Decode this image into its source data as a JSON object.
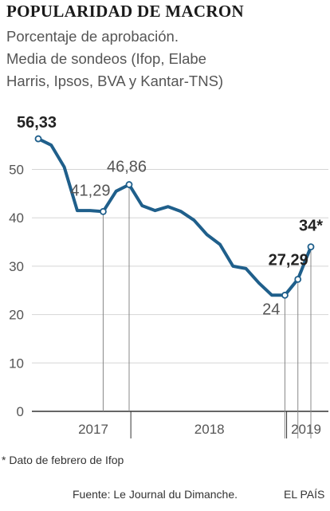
{
  "header": {
    "title": "POPULARIDAD DE MACRON",
    "subtitle_lines": [
      "Porcentaje de aprobación.",
      "Media de sondeos (Ifop, Elabe",
      "Harris, Ipsos, BVA y Kantar-TNS)"
    ]
  },
  "footer": {
    "note": "* Dato de febrero de Ifop",
    "source": "Fuente: Le Journal du Dimanche.",
    "brand": "EL PAÍS"
  },
  "colors": {
    "line": "#1f5f8b",
    "grid": "#d5d5d5",
    "axis": "#333333",
    "text": "#555555"
  },
  "chart_data": {
    "type": "line",
    "y_ticks": [
      0,
      10,
      20,
      30,
      40,
      50
    ],
    "ylim": [
      0,
      56.33
    ],
    "grid": true,
    "x_period_labels": [
      "2017",
      "2018",
      "2019"
    ],
    "x": [
      "2017-05",
      "2017-06",
      "2017-07",
      "2017-08",
      "2017-09",
      "2017-10",
      "2017-11",
      "2017-12",
      "2018-01",
      "2018-02",
      "2018-03",
      "2018-04",
      "2018-05",
      "2018-06",
      "2018-07",
      "2018-08",
      "2018-09",
      "2018-10",
      "2018-11",
      "2018-12",
      "2019-01",
      "2019-02"
    ],
    "series": [
      {
        "values": [
          56.33,
          55,
          50.5,
          41.5,
          41.5,
          41.29,
          45.5,
          46.86,
          42.5,
          41.5,
          42.3,
          41.3,
          39.5,
          36.5,
          34.5,
          30,
          29.5,
          26.5,
          24,
          24,
          27.29,
          34
        ]
      }
    ],
    "point_labels": [
      {
        "index": 0,
        "text": "56,33",
        "bold": true
      },
      {
        "index": 5,
        "text": "41,29",
        "bold": false
      },
      {
        "index": 7,
        "text": "46,86",
        "bold": false
      },
      {
        "index": 19,
        "text": "24",
        "bold": false
      },
      {
        "index": 20,
        "text": "27,29",
        "bold": true
      },
      {
        "index": 21,
        "text": "34*",
        "bold": true
      }
    ]
  }
}
